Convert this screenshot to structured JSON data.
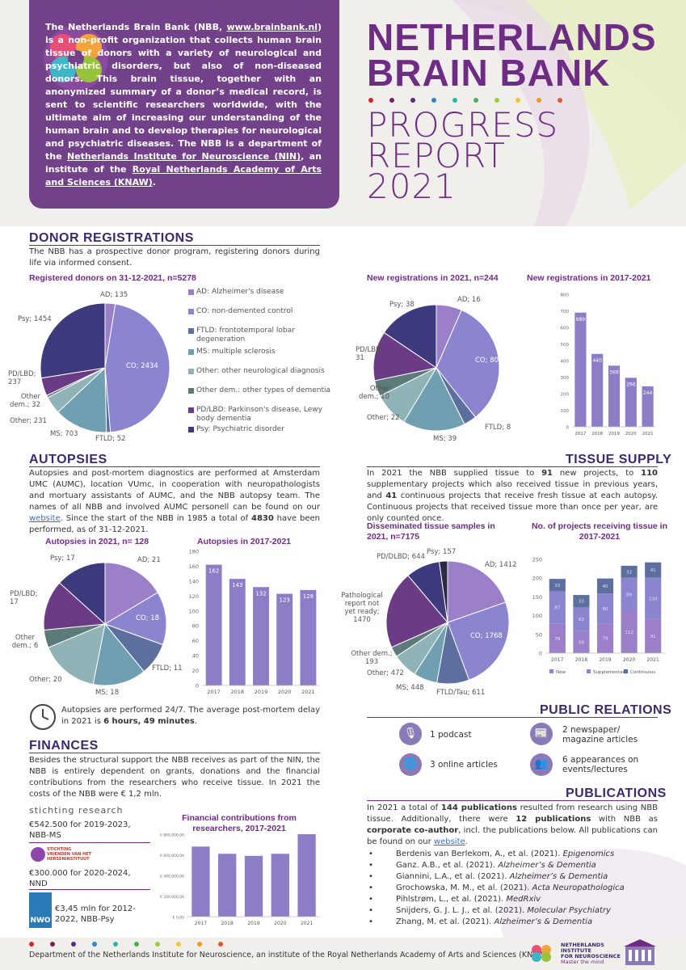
{
  "header": {
    "title_line1": "NETHERLANDS",
    "title_line2": "BRAIN BANK",
    "subtitle_line1": "PROGRESS",
    "subtitle_line2": "REPORT",
    "subtitle_line3": "2021",
    "intro_part1": "The Netherlands Brain Bank (NBB, ",
    "intro_link1": "www.brainbank.nl",
    "intro_part2": ") is a non-profit organization that collects human brain tissue of donors with a variety of neurological and psychiatric disorders, but also of non-diseased donors. This brain tissue, together with an anonymized summary of a donor’s medical record, is sent to scientific researchers worldwide, with the ultimate aim of increasing our understanding of the human brain and to develop therapies for neurological and psychiatric diseases. The NBB is a department of the ",
    "intro_link2": "Netherlands Institute for Neuroscience (NIN)",
    "intro_part3": ", an institute of the ",
    "intro_link3": "Royal Netherlands Academy of Arts and Sciences (KNAW)",
    "intro_part4": "."
  },
  "donor": {
    "heading": "DONOR REGISTRATIONS",
    "text": "The NBB has a prospective donor program, registering donors during life via informed consent.",
    "chart1_title": "Registered donors on 31-12-2021, n=5278",
    "chart2_title": "New registrations in 2021, n=244",
    "chart3_title": "New registrations in 2017-2021",
    "legend": [
      "AD: Alzheimer's disease",
      "CO: non-demented control",
      "FTLD: frontotemporal lobar degeneration",
      "MS: multiple sclerosis",
      "Other: other neurological diagnosis",
      "Other dem.: other types of dementia",
      "PD/LBD: Parkinson's disease, Lewy body dementia",
      "Psy: Psychiatric disorder"
    ]
  },
  "autopsies": {
    "heading": "AUTOPSIES",
    "text_part1": "Autopsies and post-mortem diagnostics are performed at Amsterdam UMC (AUMC), location VUmc, in cooperation with neuropathologists and mortuary assistants of AUMC, and the NBB autopsy team. The names of all NBB and involved AUMC personell can be found on our ",
    "text_link": "website",
    "text_part2": ". Since the start of the NBB in 1985 a total of ",
    "text_bold": "4830",
    "text_part3": " have been performed, as of 31-12-2021.",
    "chart1_title": "Autopsies in 2021, n= 128",
    "chart2_title": "Autopsies in 2017-2021",
    "note_part1": "Autopsies are performed 24/7. The average post-mortem delay in 2021 is ",
    "note_bold": "6 hours, 49 minutes",
    "note_part2": "."
  },
  "tissue": {
    "heading": "TISSUE SUPPLY",
    "t1": "In 2021 the NBB supplied tissue to ",
    "b1": "91",
    "t2": " new projects, to ",
    "b2": "110",
    "t3": " supplementary projects which also received tissue in previous years, and ",
    "b3": "41",
    "t4": " continuous projects that receive fresh tissue at each autopsy. Continuous projects that received tissue more than once per year, are only counted once.",
    "chart1_title": "Disseminated tissue samples in 2021, n=7175",
    "chart2_title": "No. of projects receiving tissue in 2017-2021"
  },
  "finances": {
    "heading": "FINANCES",
    "text": "Besides the structural support the NBB receives as part of the NIN, the NBB is entirely dependent on grants, donations and the financial contributions from the researchers who receive tissue. In 2021 the costs of the NBB were € 1,2 mln.",
    "sponsor1_logo": "stichting research",
    "sponsor1_text": "€542.500 for 2019-2023, NBB-MS",
    "sponsor2_logo": "STICHTING VRIENDEN VAN HET HERSENINSTITUUT",
    "sponsor2_text": "€300.000 for 2020-2024, NND",
    "sponsor3_logo": "NWO",
    "sponsor3_text": "€3,45 mln for 2012-2022, NBB-Psy",
    "chart_title": "Financial contributions from researchers, 2017-2021"
  },
  "pr": {
    "heading": "PUBLIC RELATIONS",
    "items": [
      {
        "icon": "microphone-icon",
        "text": "1 podcast"
      },
      {
        "icon": "newspaper-icon",
        "text": "2 newspaper/ magazine articles"
      },
      {
        "icon": "globe-icon",
        "text": "3 online articles"
      },
      {
        "icon": "people-icon",
        "text": "6 appearances on events/lectures"
      }
    ]
  },
  "publications": {
    "heading": "PUBLICATIONS",
    "t1": "In 2021 a total of ",
    "b1": "144 publications",
    "t2": " resulted from research using NBB tissue. Additionally, there were ",
    "b2": "12 publications",
    "t3": " with NBB as ",
    "b3": "corporate co-author",
    "t4": ", incl. the publications below. All publications can be found on our ",
    "link": "website",
    "t5": ".",
    "list": [
      {
        "authors": "Berdenis van Berlekom, A., et al. (2021). ",
        "journal": "Epigenomics"
      },
      {
        "authors": "Ganz. A.B., et al. (2021). ",
        "journal": "Alzheimer’s & Dementia"
      },
      {
        "authors": "Giannini, L.A., et al. (2021). ",
        "journal": "Alzheimer’s & Dementia"
      },
      {
        "authors": "Grochowska, M. M., et al. (2021). ",
        "journal": "Acta Neuropathologica"
      },
      {
        "authors": "Pihlstrøm, L., et al. (2021). ",
        "journal": "MedRxiv"
      },
      {
        "authors": "Snijders, G. J. L. J., et al. (2021). ",
        "journal": "Molecular Psychiatry"
      },
      {
        "authors": "Zhang, M. et al. (2021). ",
        "journal": "Alzheimer’s & Dementia"
      }
    ]
  },
  "footer": {
    "text": "Department of the Netherlands Institute for Neuroscience, an institute of the Royal Netherlands Academy of Arts and Sciences (KNAW)",
    "logo_line1": "NETHERLANDS",
    "logo_line2": "INSTITUTE",
    "logo_line3": "FOR NEUROSCIENCE",
    "logo_line4": "Master the mind"
  },
  "colors": {
    "purple": "#6e2c84",
    "navy": "#3b2a6b",
    "AD": "#9b7fc8",
    "CO": "#8b84cf",
    "FTLD": "#5d6f9e",
    "MS": "#6f9fb1",
    "Other": "#8fb3b6",
    "OtherDem": "#5b7a78",
    "PDLBD": "#6b3b86",
    "Psy": "#3d3a7e",
    "bar": "#8d7cc6"
  },
  "chart_data": [
    {
      "type": "pie",
      "id": "registered_donors",
      "title": "Registered donors on 31-12-2021, n=5278",
      "labels": [
        "AD",
        "CO",
        "FTLD",
        "MS",
        "Other",
        "Other dem.",
        "PD/LBD",
        "Psy"
      ],
      "values": [
        135,
        2434,
        52,
        703,
        231,
        32,
        237,
        1454
      ],
      "data_labels": [
        "AD; 135",
        "CO; 2434",
        "FTLD; 52",
        "MS; 703",
        "Other; 231",
        "Other dem.; 32",
        "PD/LBD; 237",
        "Psy; 1454"
      ]
    },
    {
      "type": "pie",
      "id": "new_registrations_2021",
      "title": "New registrations in 2021, n=244",
      "labels": [
        "AD",
        "CO",
        "FTLD",
        "MS",
        "Other",
        "Other dem.",
        "PD/LBD",
        "Psy"
      ],
      "values": [
        16,
        80,
        8,
        39,
        22,
        10,
        31,
        38
      ],
      "data_labels": [
        "AD; 16",
        "CO; 80",
        "FTLD; 8",
        "MS; 39",
        "Other; 22",
        "Other dem.; 10",
        "PD/LBD; 31",
        "Psy; 38"
      ]
    },
    {
      "type": "bar",
      "id": "new_registrations_2017_2021",
      "title": "New registrations in 2017-2021",
      "categories": [
        "2017",
        "2018",
        "2019",
        "2020",
        "2021"
      ],
      "values": [
        689,
        440,
        369,
        296,
        244
      ],
      "ylim": [
        0,
        800
      ],
      "yticks": [
        0,
        100,
        200,
        300,
        400,
        500,
        600,
        700,
        800
      ]
    },
    {
      "type": "pie",
      "id": "autopsies_2021",
      "title": "Autopsies in 2021, n= 128",
      "labels": [
        "AD",
        "CO",
        "FTLD",
        "MS",
        "Other",
        "Other dem.",
        "PD/LBD",
        "Psy"
      ],
      "values": [
        21,
        18,
        11,
        18,
        20,
        6,
        17,
        17
      ],
      "data_labels": [
        "AD; 21",
        "CO; 18",
        "FTLD; 11",
        "MS; 18",
        "Other; 20",
        "Other dem.; 6",
        "PD/LBD; 17",
        "Psy; 17"
      ]
    },
    {
      "type": "bar",
      "id": "autopsies_2017_2021",
      "title": "Autopsies in 2017-2021",
      "categories": [
        "2017",
        "2018",
        "2019",
        "2020",
        "2021"
      ],
      "values": [
        162,
        143,
        132,
        123,
        128
      ],
      "ylim": [
        0,
        180
      ],
      "yticks": [
        0,
        20,
        40,
        60,
        80,
        100,
        120,
        140,
        160,
        180
      ]
    },
    {
      "type": "pie",
      "id": "disseminated_samples_2021",
      "title": "Disseminated tissue samples in 2021, n=7175",
      "labels": [
        "AD",
        "CO",
        "FTLD/Tau",
        "MS",
        "Other",
        "Other dem.",
        "Pathological report not yet ready",
        "PD/DLBD",
        "Psy"
      ],
      "values": [
        1412,
        1768,
        611,
        448,
        472,
        193,
        1470,
        644,
        157
      ],
      "data_labels": [
        "AD; 1412",
        "CO; 1768",
        "FTLD/Tau; 611",
        "MS; 448",
        "Other; 472",
        "Other dem.; 193",
        "Pathological report not yet ready; 1470",
        "PD/DLBD; 644",
        "Psy; 157"
      ]
    },
    {
      "type": "bar",
      "stacked": true,
      "id": "projects_2017_2021",
      "title": "No. of projects receiving tissue in 2017-2021",
      "categories": [
        "2017",
        "2018",
        "2019",
        "2020",
        "2021"
      ],
      "series": [
        {
          "name": "New",
          "values": [
            78,
            59,
            79,
            112,
            91
          ]
        },
        {
          "name": "Supplementary",
          "values": [
            87,
            63,
            80,
            89,
            110
          ]
        },
        {
          "name": "Continuous",
          "values": [
            33,
            33,
            40,
            32,
            41
          ]
        }
      ],
      "ylim": [
        0,
        250
      ],
      "yticks": [
        0,
        50,
        100,
        150,
        200,
        250
      ],
      "legend": "bottom"
    },
    {
      "type": "bar",
      "id": "financial_contributions_2017_2021",
      "title": "Financial contributions from researchers, 2017-2021",
      "categories": [
        "2017",
        "2018",
        "2019",
        "2020",
        "2021"
      ],
      "values": [
        680000,
        610000,
        590000,
        610000,
        800000
      ],
      "ylim": [
        0,
        800000
      ],
      "yticks": [
        "€ 0,00",
        "€ 200.000,00",
        "€ 400.000,00",
        "€ 600.000,00",
        "€ 800.000,00"
      ]
    }
  ]
}
